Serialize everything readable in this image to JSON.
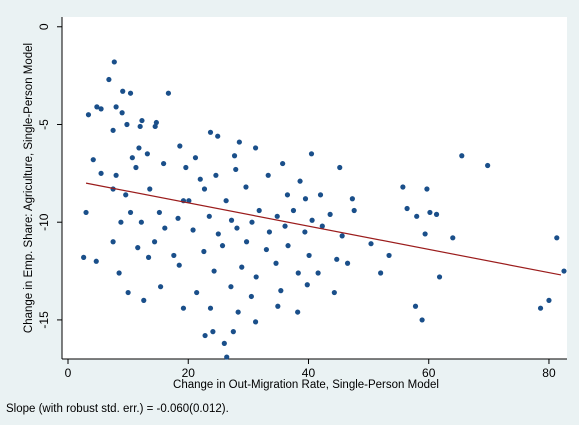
{
  "chart_data": {
    "type": "scatter",
    "xlabel": "Change in Out-Migration Rate, Single-Person Model",
    "ylabel": "Change in Emp. Share: Agriculture, Single-Person Model",
    "note": "Slope (with robust std. err.) = -0.060(0.012).",
    "xlim": [
      -1,
      83
    ],
    "ylim": [
      -17,
      0.5
    ],
    "xticks": [
      0,
      20,
      40,
      60,
      80
    ],
    "yticks": [
      0,
      -5,
      -10,
      -15
    ],
    "grid": false,
    "colors": {
      "points": "#1a4f8a",
      "fit_line": "#9b1c1c",
      "plot_bg": "#ffffff",
      "outer_bg": "#eaf2f3"
    },
    "fit_line": {
      "x": [
        3,
        82
      ],
      "y": [
        -8.0,
        -12.7
      ]
    },
    "points": [
      [
        7.7,
        -1.8
      ],
      [
        6.8,
        -2.7
      ],
      [
        9.1,
        -3.3
      ],
      [
        10.4,
        -3.4
      ],
      [
        16.7,
        -3.4
      ],
      [
        4.8,
        -4.1
      ],
      [
        5.5,
        -4.2
      ],
      [
        3.4,
        -4.5
      ],
      [
        8.0,
        -4.1
      ],
      [
        9.0,
        -4.4
      ],
      [
        12.3,
        -4.8
      ],
      [
        14.7,
        -4.9
      ],
      [
        7.5,
        -5.3
      ],
      [
        9.8,
        -5.0
      ],
      [
        12.0,
        -5.1
      ],
      [
        14.5,
        -5.1
      ],
      [
        23.7,
        -5.4
      ],
      [
        24.9,
        -5.6
      ],
      [
        28.5,
        -5.9
      ],
      [
        11.8,
        -6.2
      ],
      [
        13.2,
        -6.5
      ],
      [
        4.2,
        -6.8
      ],
      [
        10.7,
        -6.7
      ],
      [
        18.6,
        -6.1
      ],
      [
        21.2,
        -6.7
      ],
      [
        27.7,
        -6.6
      ],
      [
        31.2,
        -6.2
      ],
      [
        35.7,
        -7.0
      ],
      [
        40.5,
        -6.5
      ],
      [
        65.5,
        -6.6
      ],
      [
        69.8,
        -7.1
      ],
      [
        8.0,
        -7.6
      ],
      [
        11.3,
        -7.2
      ],
      [
        15.9,
        -7.0
      ],
      [
        19.6,
        -7.2
      ],
      [
        22.0,
        -7.8
      ],
      [
        24.6,
        -7.6
      ],
      [
        27.9,
        -7.3
      ],
      [
        33.3,
        -7.6
      ],
      [
        38.6,
        -7.9
      ],
      [
        45.2,
        -7.2
      ],
      [
        7.5,
        -8.3
      ],
      [
        9.6,
        -8.6
      ],
      [
        13.6,
        -8.3
      ],
      [
        19.2,
        -8.9
      ],
      [
        22.7,
        -8.3
      ],
      [
        26.3,
        -8.9
      ],
      [
        29.6,
        -8.2
      ],
      [
        36.5,
        -8.6
      ],
      [
        39.5,
        -8.8
      ],
      [
        42.0,
        -8.6
      ],
      [
        55.7,
        -8.2
      ],
      [
        59.7,
        -8.3
      ],
      [
        10.4,
        -9.5
      ],
      [
        15.2,
        -9.5
      ],
      [
        18.3,
        -9.8
      ],
      [
        23.5,
        -9.7
      ],
      [
        27.2,
        -9.9
      ],
      [
        31.8,
        -9.4
      ],
      [
        34.8,
        -9.7
      ],
      [
        37.5,
        -9.4
      ],
      [
        40.6,
        -9.9
      ],
      [
        43.6,
        -9.6
      ],
      [
        47.6,
        -9.4
      ],
      [
        56.4,
        -9.3
      ],
      [
        58.0,
        -9.7
      ],
      [
        60.2,
        -9.5
      ],
      [
        3.0,
        -9.5
      ],
      [
        8.8,
        -10.0
      ],
      [
        12.2,
        -10.0
      ],
      [
        16.1,
        -10.3
      ],
      [
        20.8,
        -10.4
      ],
      [
        25.0,
        -10.6
      ],
      [
        28.1,
        -10.3
      ],
      [
        30.6,
        -10.0
      ],
      [
        33.5,
        -10.5
      ],
      [
        36.1,
        -10.2
      ],
      [
        39.4,
        -10.5
      ],
      [
        42.3,
        -10.2
      ],
      [
        45.6,
        -10.7
      ],
      [
        50.4,
        -11.1
      ],
      [
        59.4,
        -10.6
      ],
      [
        64.0,
        -10.8
      ],
      [
        81.3,
        -10.8
      ],
      [
        7.5,
        -11.0
      ],
      [
        11.6,
        -11.3
      ],
      [
        14.4,
        -11.0
      ],
      [
        17.6,
        -11.7
      ],
      [
        22.6,
        -11.5
      ],
      [
        25.7,
        -11.2
      ],
      [
        29.7,
        -11.0
      ],
      [
        33.0,
        -11.4
      ],
      [
        36.6,
        -11.2
      ],
      [
        40.1,
        -11.7
      ],
      [
        44.7,
        -11.9
      ],
      [
        61.8,
        -12.8
      ],
      [
        2.6,
        -11.8
      ],
      [
        4.7,
        -12.0
      ],
      [
        8.5,
        -12.6
      ],
      [
        13.4,
        -11.8
      ],
      [
        18.5,
        -12.2
      ],
      [
        24.3,
        -12.5
      ],
      [
        28.9,
        -12.3
      ],
      [
        31.3,
        -12.8
      ],
      [
        34.6,
        -12.1
      ],
      [
        38.3,
        -12.6
      ],
      [
        41.6,
        -12.6
      ],
      [
        46.5,
        -12.1
      ],
      [
        52.0,
        -12.6
      ],
      [
        82.5,
        -12.5
      ],
      [
        10.0,
        -13.6
      ],
      [
        15.4,
        -13.3
      ],
      [
        21.4,
        -13.6
      ],
      [
        27.1,
        -13.3
      ],
      [
        30.5,
        -13.8
      ],
      [
        35.4,
        -13.5
      ],
      [
        39.8,
        -13.2
      ],
      [
        44.3,
        -13.6
      ],
      [
        12.6,
        -14.0
      ],
      [
        19.2,
        -14.4
      ],
      [
        23.7,
        -14.4
      ],
      [
        28.3,
        -14.6
      ],
      [
        34.9,
        -14.3
      ],
      [
        38.2,
        -14.6
      ],
      [
        57.8,
        -14.3
      ],
      [
        78.6,
        -14.4
      ],
      [
        80.0,
        -14.0
      ],
      [
        31.2,
        -15.1
      ],
      [
        58.9,
        -15.0
      ],
      [
        22.8,
        -15.8
      ],
      [
        24.1,
        -15.6
      ],
      [
        27.5,
        -15.6
      ],
      [
        26.0,
        -16.2
      ],
      [
        26.4,
        -16.9
      ],
      [
        5.5,
        -7.5
      ],
      [
        20.1,
        -8.9
      ],
      [
        47.3,
        -8.8
      ],
      [
        53.4,
        -11.7
      ],
      [
        61.3,
        -9.6
      ]
    ]
  }
}
